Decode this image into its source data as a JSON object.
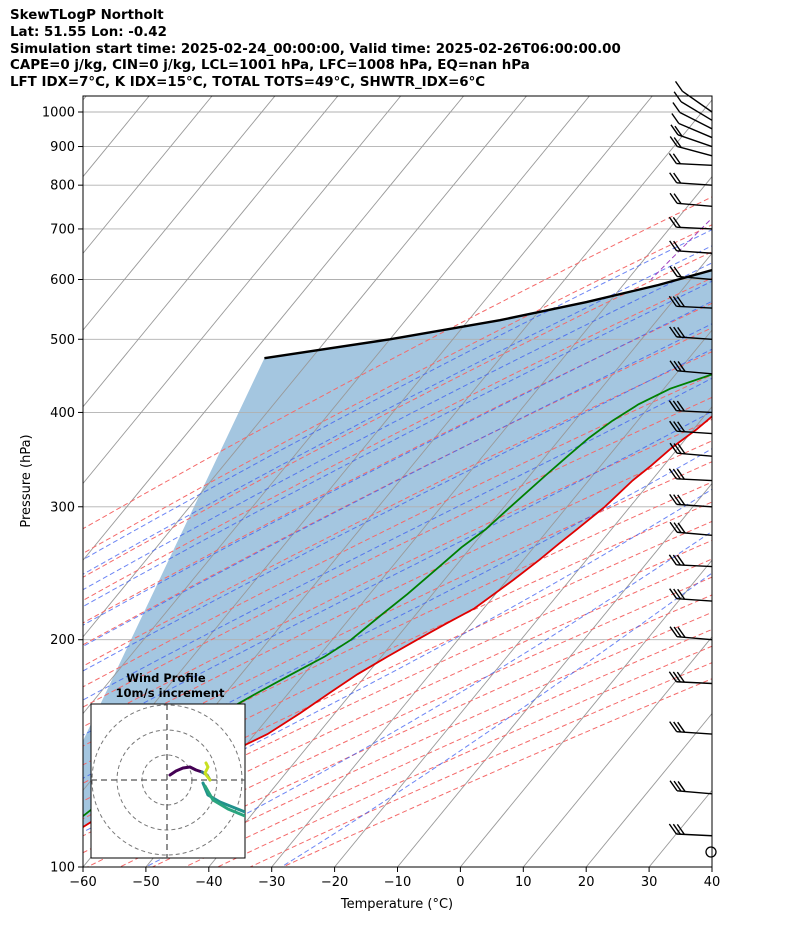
{
  "header": {
    "line1": "SkewTLogP Northolt",
    "line2": "Lat: 51.55   Lon: -0.42",
    "line3": "Simulation start time: 2025-02-24_00:00:00, Valid time: 2025-02-26T06:00:00.00",
    "line4": "CAPE=0 j/kg, CIN=0 j/kg, LCL=1001 hPa, LFC=1008 hPa, EQ=nan hPa",
    "line5": "LFT IDX=7°C, K IDX=15°C, TOTAL TOTS=49°C, SHWTR_IDX=6°C"
  },
  "chart_data": {
    "type": "line",
    "title": "",
    "xlabel": "Temperature (°C)",
    "ylabel": "Pressure (hPa)",
    "xlim": [
      -60,
      40
    ],
    "ylim": [
      1050,
      100
    ],
    "yscale": "log",
    "skew": true,
    "x_ticks": [
      -60,
      -50,
      -40,
      -30,
      -20,
      -10,
      0,
      10,
      20,
      30,
      40
    ],
    "y_ticks": [
      100,
      200,
      300,
      400,
      500,
      600,
      700,
      800,
      900,
      1000
    ],
    "grid": true,
    "colors": {
      "temperature": "#e00000",
      "dewpoint": "#008000",
      "parcel": "#000000",
      "fill": "#a4c6e0",
      "dry_adiabat": "#f46a6a",
      "moist_adiabat": "#3b5cf0",
      "mixing_ratio": "#a040c0",
      "isotherm": "#999999"
    },
    "series": [
      {
        "role": "temperature",
        "x": [
          5.2,
          6.0,
          6.8,
          5.5,
          4.2,
          3.0,
          2.2,
          1.2,
          -0.2,
          -1.2,
          -2.3,
          -3.5,
          -5.0,
          -6.8,
          -8.5,
          -11.0,
          -13.0,
          -13.5,
          -14.5,
          -16.0,
          -17.5,
          -18.5,
          -19.5,
          -21.0,
          -22.0,
          -23.0,
          -24.0,
          -25.5,
          -26.5,
          -27.5,
          -29.0,
          -31.5,
          -34.0,
          -36.5,
          -39.0,
          -41.5,
          -43.5,
          -45.5,
          -48.0,
          -51.5,
          -54.5,
          -57.5,
          -61.0,
          -64.5,
          -67.0,
          -69.5
        ],
        "p": [
          1000,
          990,
          975,
          950,
          925,
          900,
          875,
          850,
          825,
          800,
          775,
          750,
          725,
          700,
          650,
          600,
          550,
          500,
          460,
          440,
          420,
          400,
          380,
          360,
          340,
          325,
          300,
          280,
          268,
          255,
          240,
          220,
          210,
          200,
          190,
          180,
          170,
          160,
          150,
          142,
          135,
          128,
          122,
          115,
          108,
          100
        ]
      },
      {
        "role": "dewpoint",
        "x": [
          3.8,
          2.2,
          0.0,
          -2.5,
          -5.0,
          -6.5,
          -6.8,
          -5.0,
          -1.0,
          -0.5,
          -0.8,
          -1.6,
          -3.5,
          -6.0,
          -9.0,
          -11.5,
          -17.5,
          -24.0,
          -29.0,
          -32.0,
          -34.0,
          -35.5,
          -36.5,
          -37.5,
          -39.0,
          -40.0,
          -41.5,
          -42.5,
          -44.0,
          -45.5,
          -47.0,
          -49.0,
          -52.0,
          -55.0,
          -58.0,
          -60.0,
          -62.0,
          -64.0,
          -66.0,
          -68.0,
          -70.0
        ],
        "p": [
          975,
          950,
          925,
          900,
          875,
          850,
          825,
          800,
          775,
          750,
          725,
          700,
          675,
          650,
          600,
          550,
          500,
          450,
          430,
          410,
          390,
          370,
          350,
          330,
          300,
          280,
          265,
          250,
          230,
          215,
          200,
          190,
          180,
          170,
          160,
          150,
          140,
          130,
          120,
          110,
          100
        ]
      },
      {
        "role": "parcel",
        "x": [
          4.2,
          3.0,
          0.8,
          -2.0,
          -5.5,
          -9.8,
          -15.3,
          -22.3,
          -31.4,
          -37.2,
          -44.4,
          -53.6,
          -65.0,
          -80.0,
          -97.5
        ],
        "p": [
          1008,
          1000,
          950,
          900,
          850,
          800,
          750,
          700,
          650,
          620,
          590,
          560,
          530,
          500,
          472
        ]
      }
    ],
    "wind_profile": {
      "title": "Wind Profile",
      "subtitle": "10m/s increment"
    }
  }
}
